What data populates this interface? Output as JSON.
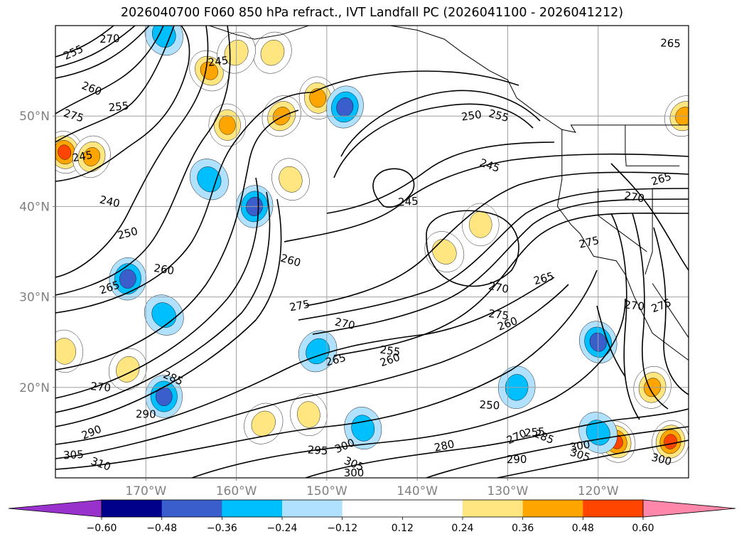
{
  "title": "2026040700 F060 850 hPa refract., IVT Landfall PC (2026041100 - 2026041212)",
  "map": {
    "lon_range": [
      -180,
      -110
    ],
    "lat_range": [
      10,
      60
    ],
    "projection": "PlateCarree",
    "grid": true
  },
  "axes": {
    "x_ticks": [
      {
        "lon": -170,
        "label": "170°W"
      },
      {
        "lon": -160,
        "label": "160°W"
      },
      {
        "lon": -150,
        "label": "150°W"
      },
      {
        "lon": -140,
        "label": "140°W"
      },
      {
        "lon": -130,
        "label": "130°W"
      },
      {
        "lon": -120,
        "label": "120°W"
      }
    ],
    "y_ticks": [
      {
        "lat": 50,
        "label": "50°N"
      },
      {
        "lat": 40,
        "label": "40°N"
      },
      {
        "lat": 30,
        "label": "30°N"
      },
      {
        "lat": 20,
        "label": "20°N"
      }
    ]
  },
  "colorbar": {
    "under_color": "#9932cc",
    "over_color": "#ff88aa",
    "bins": [
      "#00008b",
      "#3a5fcd",
      "#00bfff",
      "#b0e2ff",
      "#ffffff",
      "#ffffff",
      "#ffe680",
      "#ffa500",
      "#ff4500",
      "#b22222"
    ],
    "tick_values": [
      -0.6,
      -0.48,
      -0.36,
      -0.24,
      -0.12,
      0.12,
      0.24,
      0.36,
      0.48,
      0.6
    ],
    "tick_labels": [
      "−0.60",
      "−0.48",
      "−0.36",
      "−0.24",
      "−0.12",
      "0.12",
      "0.24",
      "0.36",
      "0.48",
      "0.60"
    ]
  },
  "contour_labels": [
    {
      "lon": -178,
      "lat": 57,
      "text": "255"
    },
    {
      "lon": -174,
      "lat": 58.5,
      "text": "270"
    },
    {
      "lon": -176,
      "lat": 53,
      "text": "260"
    },
    {
      "lon": -173,
      "lat": 51,
      "text": "255"
    },
    {
      "lon": -178,
      "lat": 50,
      "text": "275"
    },
    {
      "lon": -177,
      "lat": 45.5,
      "text": "245"
    },
    {
      "lon": -174,
      "lat": 40.5,
      "text": "240"
    },
    {
      "lon": -172,
      "lat": 37,
      "text": "250"
    },
    {
      "lon": -168,
      "lat": 33,
      "text": "260"
    },
    {
      "lon": -174,
      "lat": 31,
      "text": "265"
    },
    {
      "lon": -175,
      "lat": 20,
      "text": "270"
    },
    {
      "lon": -176,
      "lat": 15,
      "text": "290"
    },
    {
      "lon": -170,
      "lat": 17,
      "text": "290"
    },
    {
      "lon": -167,
      "lat": 21,
      "text": "285"
    },
    {
      "lon": -178,
      "lat": 12.5,
      "text": "305"
    },
    {
      "lon": -175,
      "lat": 11.5,
      "text": "310"
    },
    {
      "lon": -162,
      "lat": 56,
      "text": "245"
    },
    {
      "lon": -154,
      "lat": 34,
      "text": "260"
    },
    {
      "lon": -153,
      "lat": 29,
      "text": "275"
    },
    {
      "lon": -148,
      "lat": 27,
      "text": "270"
    },
    {
      "lon": -149,
      "lat": 23,
      "text": "265"
    },
    {
      "lon": -143,
      "lat": 24,
      "text": "255"
    },
    {
      "lon": -143,
      "lat": 23,
      "text": "260"
    },
    {
      "lon": -151,
      "lat": 13,
      "text": "295"
    },
    {
      "lon": -148,
      "lat": 13.5,
      "text": "300"
    },
    {
      "lon": -147,
      "lat": 10.5,
      "text": "300"
    },
    {
      "lon": -147,
      "lat": 11.5,
      "text": "305"
    },
    {
      "lon": -141,
      "lat": 40.5,
      "text": "245"
    },
    {
      "lon": -132,
      "lat": 44.5,
      "text": "245"
    },
    {
      "lon": -134,
      "lat": 50,
      "text": "250"
    },
    {
      "lon": -131,
      "lat": 50,
      "text": "255"
    },
    {
      "lon": -137,
      "lat": 13.5,
      "text": "280"
    },
    {
      "lon": -131,
      "lat": 31,
      "text": "270"
    },
    {
      "lon": -126,
      "lat": 32,
      "text": "265"
    },
    {
      "lon": -131,
      "lat": 28,
      "text": "275"
    },
    {
      "lon": -130,
      "lat": 27,
      "text": "260"
    },
    {
      "lon": -132,
      "lat": 18,
      "text": "250"
    },
    {
      "lon": -129,
      "lat": 14.5,
      "text": "270"
    },
    {
      "lon": -129,
      "lat": 12,
      "text": "290"
    },
    {
      "lon": -126,
      "lat": 14.5,
      "text": "285"
    },
    {
      "lon": -127,
      "lat": 15,
      "text": "255"
    },
    {
      "lon": -122,
      "lat": 12.5,
      "text": "305"
    },
    {
      "lon": -122,
      "lat": 13.5,
      "text": "300"
    },
    {
      "lon": -113,
      "lat": 12,
      "text": "300"
    },
    {
      "lon": -121,
      "lat": 36,
      "text": "275"
    },
    {
      "lon": -116,
      "lat": 41,
      "text": "270"
    },
    {
      "lon": -113,
      "lat": 43,
      "text": "265"
    },
    {
      "lon": -116,
      "lat": 29,
      "text": "270"
    },
    {
      "lon": -113,
      "lat": 29,
      "text": "275"
    },
    {
      "lon": -112,
      "lat": 58,
      "text": "265"
    }
  ],
  "pc_patches": [
    {
      "lon": -163,
      "lat": 55,
      "v": 0.45
    },
    {
      "lon": -161,
      "lat": 49,
      "v": 0.42
    },
    {
      "lon": -155,
      "lat": 50,
      "v": 0.4
    },
    {
      "lon": -151,
      "lat": 52,
      "v": 0.38
    },
    {
      "lon": -156,
      "lat": 57,
      "v": 0.35
    },
    {
      "lon": -179,
      "lat": 46,
      "v": 0.5
    },
    {
      "lon": -176,
      "lat": 45.5,
      "v": 0.4
    },
    {
      "lon": -154,
      "lat": 43,
      "v": 0.3
    },
    {
      "lon": -148,
      "lat": 51,
      "v": -0.45
    },
    {
      "lon": -168,
      "lat": 59,
      "v": -0.3
    },
    {
      "lon": -158,
      "lat": 40,
      "v": -0.4
    },
    {
      "lon": -163,
      "lat": 43,
      "v": -0.25
    },
    {
      "lon": -172,
      "lat": 32,
      "v": -0.4
    },
    {
      "lon": -168,
      "lat": 28,
      "v": -0.35
    },
    {
      "lon": -168,
      "lat": 19,
      "v": -0.45
    },
    {
      "lon": -157,
      "lat": 16,
      "v": 0.35
    },
    {
      "lon": -152,
      "lat": 17,
      "v": 0.3
    },
    {
      "lon": -151,
      "lat": 24,
      "v": -0.3
    },
    {
      "lon": -146,
      "lat": 15.5,
      "v": -0.3
    },
    {
      "lon": -172,
      "lat": 22,
      "v": 0.25
    },
    {
      "lon": -120,
      "lat": 25,
      "v": -0.45
    },
    {
      "lon": -114,
      "lat": 20,
      "v": 0.4
    },
    {
      "lon": -118,
      "lat": 14,
      "v": 0.55
    },
    {
      "lon": -112,
      "lat": 14,
      "v": 0.5
    },
    {
      "lon": -120,
      "lat": 15,
      "v": -0.25
    },
    {
      "lon": -129,
      "lat": 20,
      "v": -0.3
    },
    {
      "lon": -137,
      "lat": 35,
      "v": 0.3
    },
    {
      "lon": -133,
      "lat": 38,
      "v": 0.25
    },
    {
      "lon": -110.5,
      "lat": 50,
      "v": 0.4
    },
    {
      "lon": -179,
      "lat": 24,
      "v": 0.25
    },
    {
      "lon": -160,
      "lat": 57,
      "v": 0.3
    }
  ],
  "coast_polylines": [
    {
      "lonlat": [
        [
          -163,
          60
        ],
        [
          -160,
          59
        ],
        [
          -158,
          58.5
        ],
        [
          -155,
          59
        ],
        [
          -152,
          60
        ]
      ]
    },
    {
      "lonlat": [
        [
          -152,
          60
        ],
        [
          -150,
          61
        ],
        [
          -147,
          60.5
        ],
        [
          -143,
          60
        ],
        [
          -140,
          59.5
        ],
        [
          -137,
          58.5
        ],
        [
          -135,
          57
        ],
        [
          -132,
          55
        ],
        [
          -130,
          54
        ],
        [
          -129,
          52
        ],
        [
          -127,
          50.5
        ],
        [
          -124,
          48.5
        ]
      ]
    },
    {
      "lonlat": [
        [
          -124,
          48.5
        ],
        [
          -124,
          46
        ],
        [
          -124,
          43
        ],
        [
          -124.5,
          40
        ],
        [
          -123,
          38
        ],
        [
          -122,
          37
        ],
        [
          -120.5,
          34.5
        ],
        [
          -118,
          34
        ],
        [
          -117,
          32.5
        ],
        [
          -116,
          30
        ],
        [
          -115,
          28
        ],
        [
          -114,
          26
        ],
        [
          -112,
          24.5
        ],
        [
          -110,
          23
        ]
      ]
    },
    {
      "lonlat": [
        [
          -114,
          31.5
        ],
        [
          -113,
          30
        ],
        [
          -112,
          28.5
        ],
        [
          -111,
          27
        ],
        [
          -110,
          25.5
        ]
      ]
    },
    {
      "lonlat": [
        [
          -124,
          48.5
        ],
        [
          -122.5,
          48.2
        ],
        [
          -123,
          49
        ],
        [
          -116,
          49
        ],
        [
          -110,
          49
        ]
      ]
    },
    {
      "lonlat": [
        [
          -114.8,
          32.5
        ],
        [
          -114,
          35
        ],
        [
          -114,
          42
        ],
        [
          -110,
          42
        ]
      ]
    },
    {
      "lonlat": [
        [
          -120,
          42
        ],
        [
          -120,
          39
        ],
        [
          -114.6,
          35
        ]
      ]
    },
    {
      "lonlat": [
        [
          -117,
          49
        ],
        [
          -117,
          46
        ],
        [
          -116.9,
          44.5
        ],
        [
          -111,
          44.5
        ]
      ]
    }
  ]
}
